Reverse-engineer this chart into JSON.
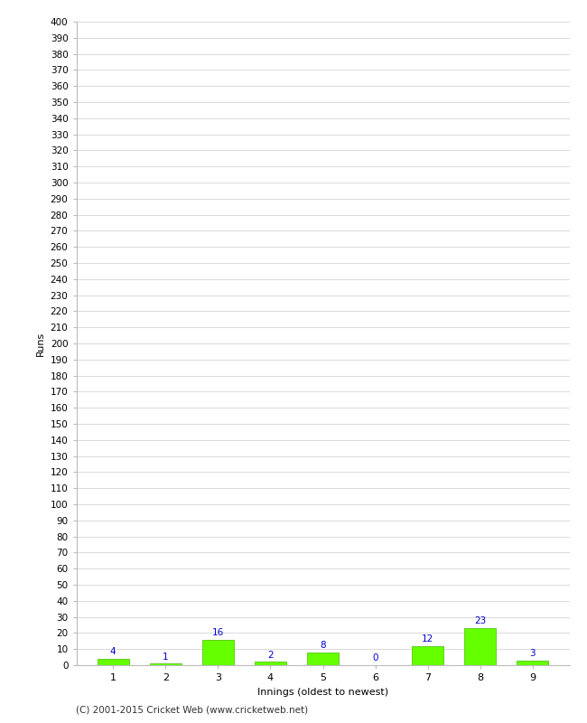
{
  "innings": [
    1,
    2,
    3,
    4,
    5,
    6,
    7,
    8,
    9
  ],
  "runs": [
    4,
    1,
    16,
    2,
    8,
    0,
    12,
    23,
    3
  ],
  "bar_color": "#66ff00",
  "bar_edge_color": "#44bb00",
  "label_color": "#0000cc",
  "xlabel": "Innings (oldest to newest)",
  "ylabel": "Runs",
  "ylim": [
    0,
    400
  ],
  "grid_color": "#cccccc",
  "background_color": "#ffffff",
  "footer": "(C) 2001-2015 Cricket Web (www.cricketweb.net)",
  "label_fontsize": 7.5,
  "axis_fontsize": 8,
  "ylabel_fontsize": 8,
  "footer_fontsize": 7.5,
  "tick_fontsize": 7.5
}
